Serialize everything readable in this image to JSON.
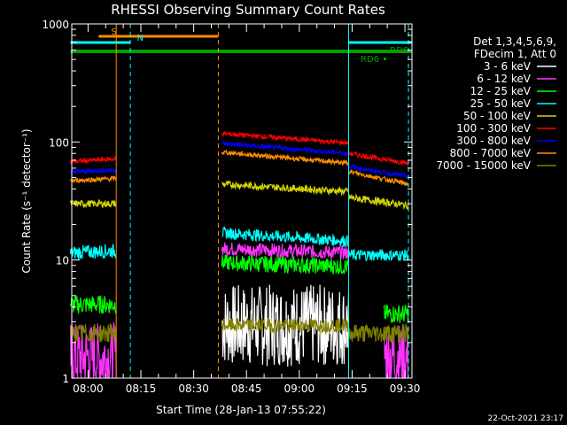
{
  "chart_data": {
    "type": "line",
    "title": "RHESSI Observing Summary Count Rates",
    "xlabel": "Start Time (28-Jan-13 07:55:22)",
    "ylabel": "Count Rate (s⁻¹ detector⁻¹)",
    "yscale": "log",
    "ylim": [
      1,
      1000
    ],
    "yticks": [
      {
        "v": 1,
        "label": "1"
      },
      {
        "v": 10,
        "label": "10"
      },
      {
        "v": 100,
        "label": "100"
      },
      {
        "v": 1000,
        "label": "1000"
      }
    ],
    "xlim": [
      "07:55:22",
      "09:32:00"
    ],
    "xticks": [
      "08:00",
      "08:15",
      "08:30",
      "08:45",
      "09:00",
      "09:15",
      "09:30"
    ],
    "grid": false,
    "legend_position": "top-right, outside plot",
    "legend_header": [
      "Det 1,3,4,5,6,9,",
      "FDecim 1, Att 0"
    ],
    "footer": "22-Oct-2021 23:17",
    "flags": [
      {
        "label": "S",
        "start": "08:03",
        "end": "08:37",
        "color": "#ff8c00",
        "level": "top"
      },
      {
        "label": "N",
        "start": "07:55",
        "end": "08:12",
        "color": "#00ffff",
        "level": "upper"
      },
      {
        "label": "",
        "start": "09:14",
        "end": "09:32",
        "color": "#00ffff",
        "level": "upper"
      },
      {
        "label": "RD6",
        "start": "07:55",
        "end": "09:32",
        "color": "#00a000",
        "level": "thick-green"
      }
    ],
    "flag_labels": {
      "rd6_right": "RD6",
      "rd6_lower": "RD6"
    },
    "vlines": [
      {
        "t": "08:08",
        "color": "#ff8c00",
        "style": "solid"
      },
      {
        "t": "08:12",
        "color": "#00ffff",
        "style": "dashed"
      },
      {
        "t": "08:37",
        "color": "#ff8c00",
        "style": "dashed"
      },
      {
        "t": "09:14",
        "color": "#00ffff",
        "style": "solid"
      },
      {
        "t": "09:31",
        "color": "#00ffff",
        "style": "dashed"
      }
    ],
    "series": [
      {
        "name": "3 - 6 keV",
        "color": "#ffffff",
        "segments": [
          {
            "start": "08:38",
            "end": "09:14",
            "y_start": 2.8,
            "y_end": 2.8,
            "noise": 0.35
          }
        ]
      },
      {
        "name": "6 - 12 keV",
        "color": "#ff33ff",
        "segments": [
          {
            "start": "07:55",
            "end": "08:08",
            "y_start": 1.5,
            "y_end": 1.5,
            "noise": 0.3
          },
          {
            "start": "08:38",
            "end": "09:14",
            "y_start": 12.5,
            "y_end": 11.5,
            "noise": 0.06
          },
          {
            "start": "09:24",
            "end": "09:31",
            "y_start": 1.5,
            "y_end": 1.5,
            "noise": 0.3
          }
        ]
      },
      {
        "name": "12 - 25 keV",
        "color": "#00ff00",
        "segments": [
          {
            "start": "07:55",
            "end": "08:08",
            "y_start": 4.2,
            "y_end": 4.2,
            "noise": 0.08
          },
          {
            "start": "08:38",
            "end": "09:14",
            "y_start": 9.5,
            "y_end": 8.8,
            "noise": 0.07
          },
          {
            "start": "09:24",
            "end": "09:31",
            "y_start": 3.5,
            "y_end": 3.5,
            "noise": 0.08
          }
        ]
      },
      {
        "name": "25 - 50 keV",
        "color": "#00ffff",
        "segments": [
          {
            "start": "07:55",
            "end": "08:08",
            "y_start": 11.5,
            "y_end": 12,
            "noise": 0.06
          },
          {
            "start": "08:38",
            "end": "09:14",
            "y_start": 17,
            "y_end": 14.5,
            "noise": 0.05
          },
          {
            "start": "09:14",
            "end": "09:31",
            "y_start": 11,
            "y_end": 11,
            "noise": 0.05
          }
        ]
      },
      {
        "name": "50 - 100 keV",
        "color": "#d4d400",
        "segments": [
          {
            "start": "07:55",
            "end": "08:08",
            "y_start": 30,
            "y_end": 30,
            "noise": 0.03
          },
          {
            "start": "08:38",
            "end": "09:14",
            "y_start": 44,
            "y_end": 38,
            "noise": 0.03
          },
          {
            "start": "09:14",
            "end": "09:31",
            "y_start": 34,
            "y_end": 29,
            "noise": 0.03
          }
        ]
      },
      {
        "name": "100 - 300 keV",
        "color": "#ff0000",
        "segments": [
          {
            "start": "07:55",
            "end": "08:08",
            "y_start": 68,
            "y_end": 72,
            "noise": 0.02
          },
          {
            "start": "08:38",
            "end": "09:14",
            "y_start": 118,
            "y_end": 98,
            "noise": 0.02
          },
          {
            "start": "09:14",
            "end": "09:31",
            "y_start": 80,
            "y_end": 66,
            "noise": 0.02
          }
        ]
      },
      {
        "name": "300 - 800 keV",
        "color": "#0000ff",
        "segments": [
          {
            "start": "07:55",
            "end": "08:08",
            "y_start": 56,
            "y_end": 58,
            "noise": 0.02
          },
          {
            "start": "08:38",
            "end": "09:14",
            "y_start": 97,
            "y_end": 80,
            "noise": 0.02
          },
          {
            "start": "09:14",
            "end": "09:31",
            "y_start": 62,
            "y_end": 51,
            "noise": 0.02
          }
        ]
      },
      {
        "name": "800 - 7000 keV",
        "color": "#ff8c00",
        "segments": [
          {
            "start": "07:55",
            "end": "08:08",
            "y_start": 47,
            "y_end": 49,
            "noise": 0.02
          },
          {
            "start": "08:38",
            "end": "09:14",
            "y_start": 82,
            "y_end": 66,
            "noise": 0.02
          },
          {
            "start": "09:14",
            "end": "09:31",
            "y_start": 56,
            "y_end": 44,
            "noise": 0.02
          }
        ]
      },
      {
        "name": "7000 - 15000 keV",
        "color": "#808000",
        "segments": [
          {
            "start": "07:55",
            "end": "08:08",
            "y_start": 2.4,
            "y_end": 2.4,
            "noise": 0.08
          },
          {
            "start": "08:38",
            "end": "09:14",
            "y_start": 2.8,
            "y_end": 2.8,
            "noise": 0.06
          },
          {
            "start": "09:14",
            "end": "09:31",
            "y_start": 2.4,
            "y_end": 2.4,
            "noise": 0.08
          }
        ]
      }
    ]
  }
}
